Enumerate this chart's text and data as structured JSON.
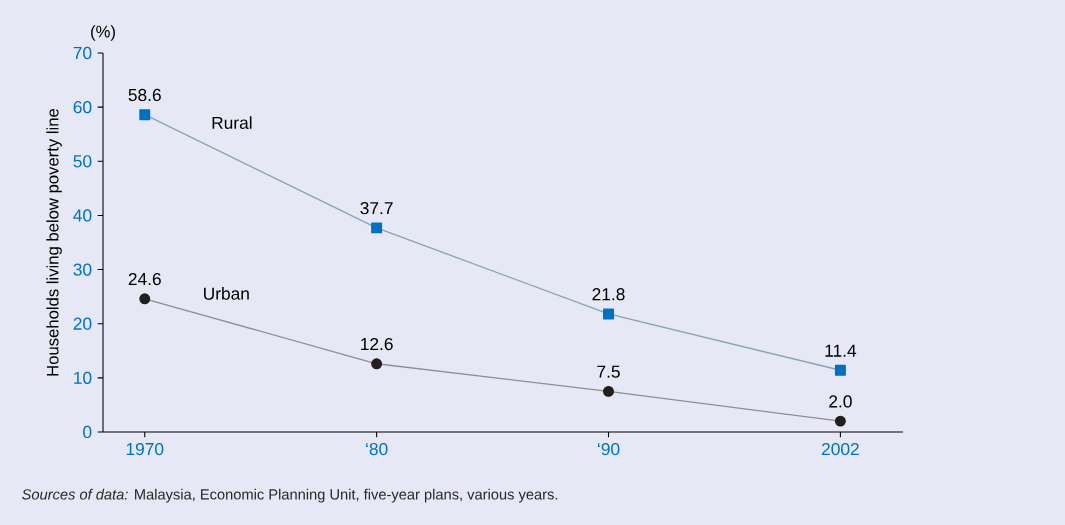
{
  "chart_data": {
    "type": "line",
    "ylabel": "Households living below poverty line",
    "categories": [
      "1970",
      "‘80",
      "‘90",
      "2002"
    ],
    "ylim": [
      0,
      70
    ],
    "yticks": [
      0,
      10,
      20,
      30,
      40,
      50,
      60,
      70
    ],
    "series": [
      {
        "name": "Rural",
        "color": "#0070c0",
        "marker": "square",
        "values": [
          58.6,
          37.7,
          21.8,
          11.4
        ],
        "value_labels": [
          "58.6",
          "37.7",
          "21.8",
          "11.4"
        ]
      },
      {
        "name": "Urban",
        "color": "#231f20",
        "marker": "circle",
        "values": [
          24.6,
          12.6,
          7.5,
          2.0
        ],
        "value_labels": [
          "24.6",
          "12.6",
          "7.5",
          "2.0"
        ]
      }
    ],
    "annotations": [
      "(%)",
      "*Sources of data:* Malaysia, Economic Planning Unit, five-year plans, various years."
    ],
    "grid": false
  }
}
